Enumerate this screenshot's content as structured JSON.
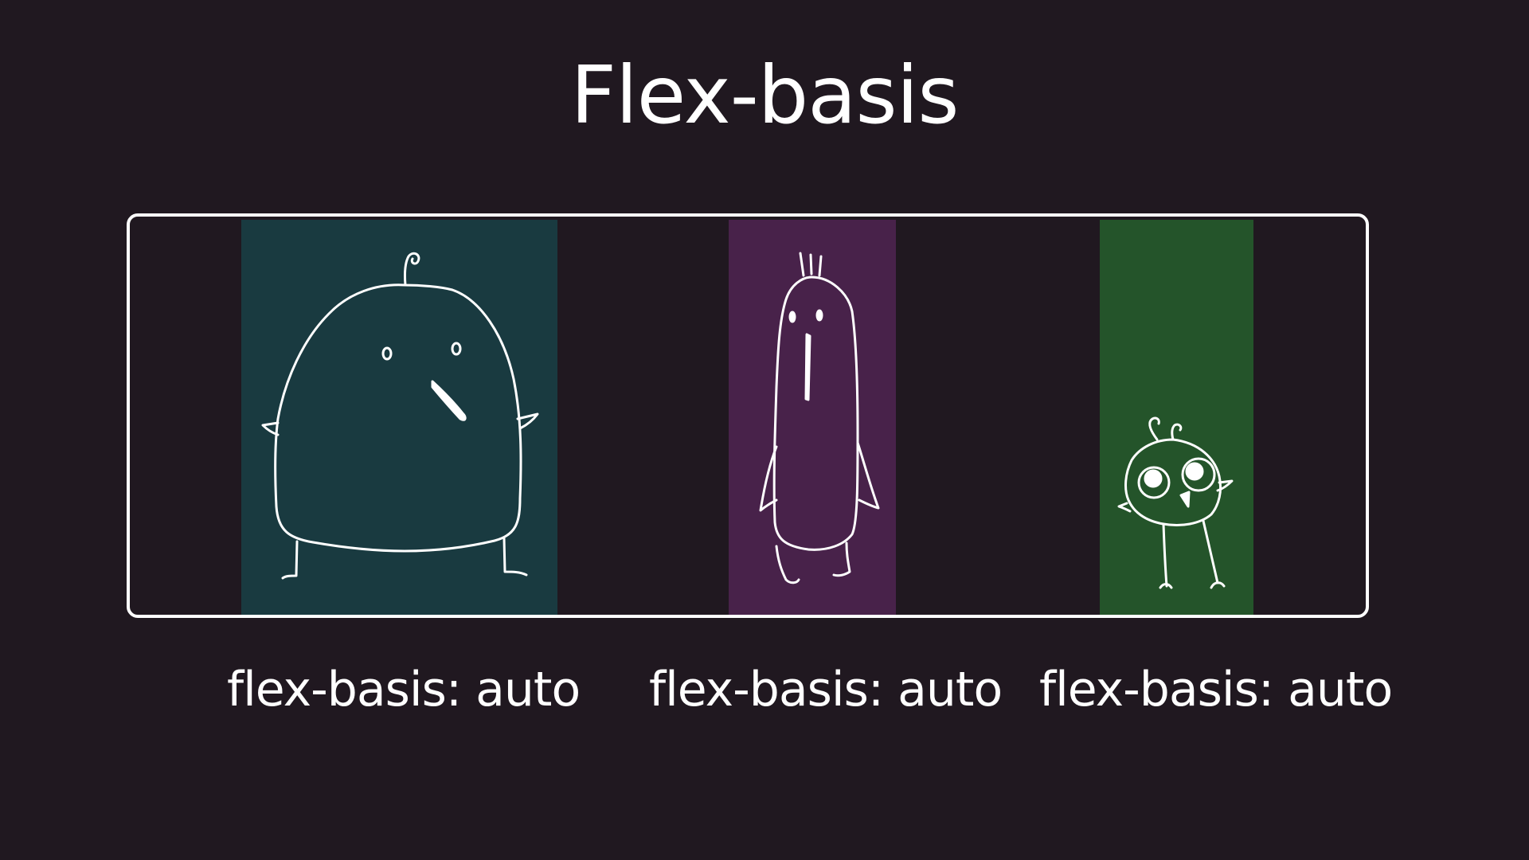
{
  "title": "Flex-basis",
  "items": [
    {
      "name": "wide-bird",
      "color": "#193a40",
      "caption": "flex-basis: auto"
    },
    {
      "name": "tall-bird",
      "color": "#48224a",
      "caption": "flex-basis: auto"
    },
    {
      "name": "small-bird",
      "color": "#24542a",
      "caption": "flex-basis: auto"
    }
  ],
  "colors": {
    "background": "#201820",
    "container_border": "#ffffff",
    "line_art": "#ffffff"
  }
}
